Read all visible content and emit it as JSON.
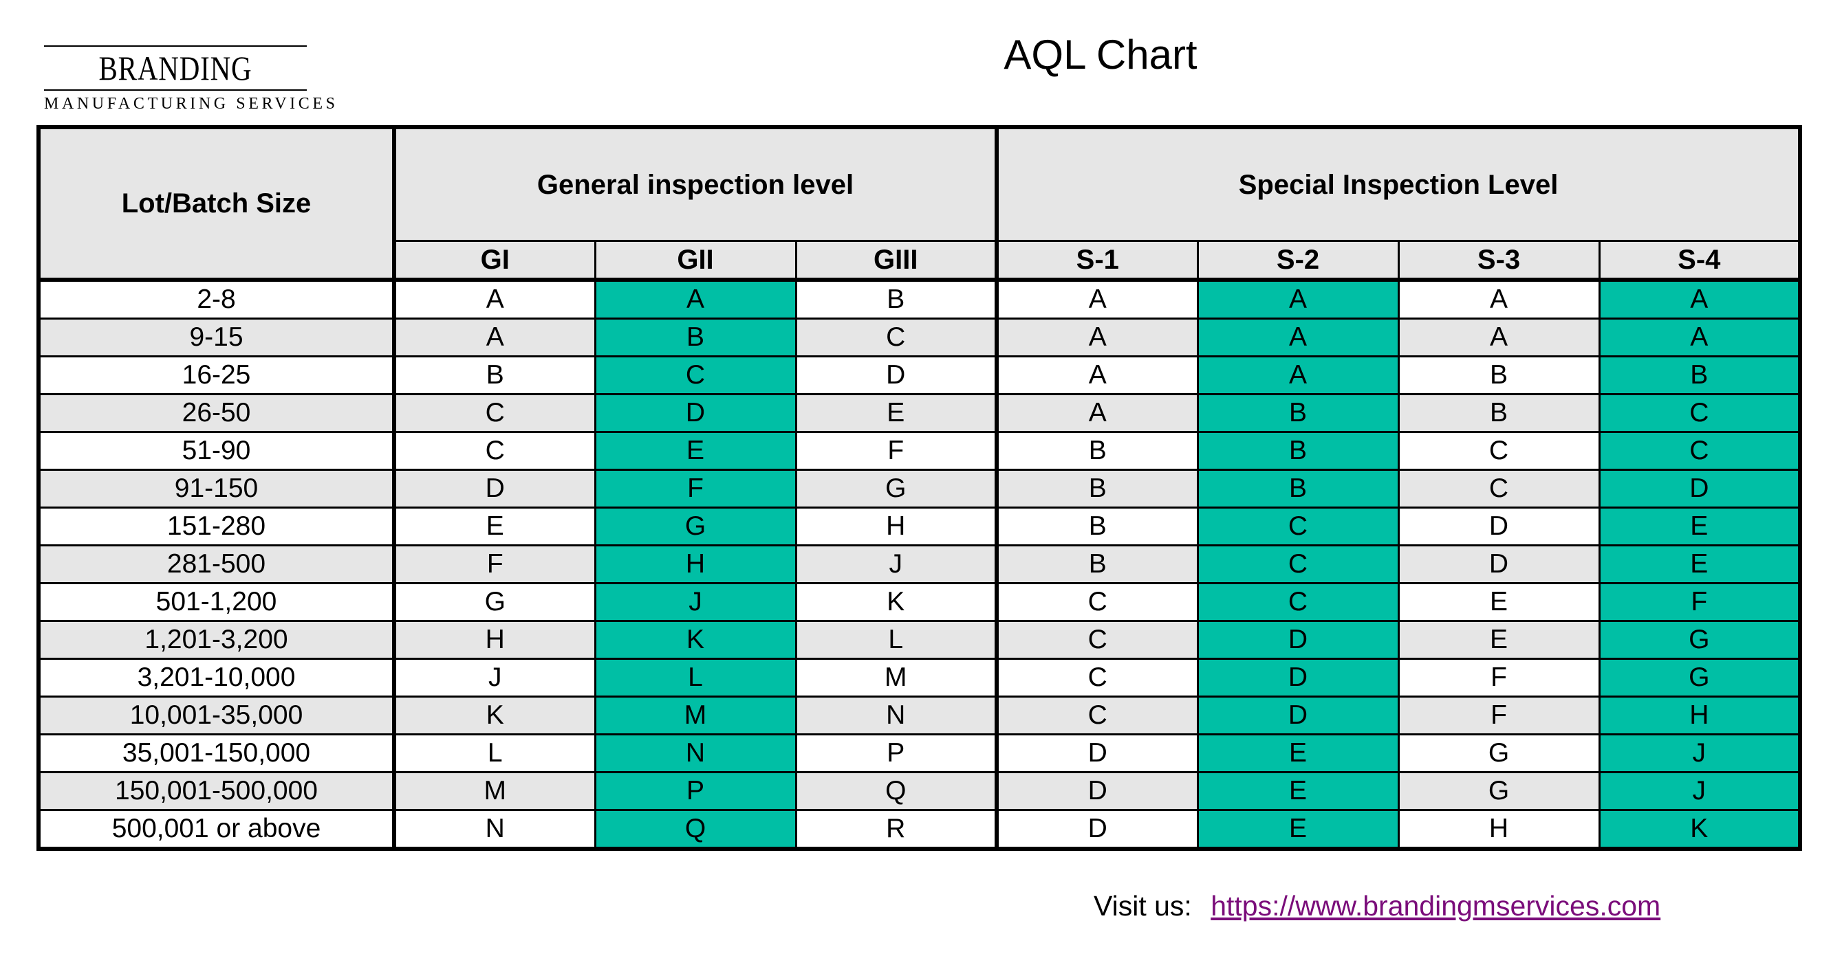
{
  "logo": {
    "brand": "BRANDING",
    "subtitle": "MANUFACTURING SERVICES"
  },
  "title": "AQL Chart",
  "table": {
    "lot_header": "Lot/Batch Size",
    "general_header": "General inspection level",
    "special_header": "Special Inspection Level",
    "columns": [
      "GI",
      "GII",
      "GIII",
      "S-1",
      "S-2",
      "S-3",
      "S-4"
    ],
    "highlight_columns": [
      "GII",
      "S-2",
      "S-4"
    ],
    "highlight_color": "#00bfa5",
    "rows": [
      {
        "lot": "2-8",
        "codes": [
          "A",
          "A",
          "B",
          "A",
          "A",
          "A",
          "A"
        ]
      },
      {
        "lot": "9-15",
        "codes": [
          "A",
          "B",
          "C",
          "A",
          "A",
          "A",
          "A"
        ]
      },
      {
        "lot": "16-25",
        "codes": [
          "B",
          "C",
          "D",
          "A",
          "A",
          "B",
          "B"
        ]
      },
      {
        "lot": "26-50",
        "codes": [
          "C",
          "D",
          "E",
          "A",
          "B",
          "B",
          "C"
        ]
      },
      {
        "lot": "51-90",
        "codes": [
          "C",
          "E",
          "F",
          "B",
          "B",
          "C",
          "C"
        ]
      },
      {
        "lot": "91-150",
        "codes": [
          "D",
          "F",
          "G",
          "B",
          "B",
          "C",
          "D"
        ]
      },
      {
        "lot": "151-280",
        "codes": [
          "E",
          "G",
          "H",
          "B",
          "C",
          "D",
          "E"
        ]
      },
      {
        "lot": "281-500",
        "codes": [
          "F",
          "H",
          "J",
          "B",
          "C",
          "D",
          "E"
        ]
      },
      {
        "lot": "501-1,200",
        "codes": [
          "G",
          "J",
          "K",
          "C",
          "C",
          "E",
          "F"
        ]
      },
      {
        "lot": "1,201-3,200",
        "codes": [
          "H",
          "K",
          "L",
          "C",
          "D",
          "E",
          "G"
        ]
      },
      {
        "lot": "3,201-10,000",
        "codes": [
          "J",
          "L",
          "M",
          "C",
          "D",
          "F",
          "G"
        ]
      },
      {
        "lot": "10,001-35,000",
        "codes": [
          "K",
          "M",
          "N",
          "C",
          "D",
          "F",
          "H"
        ]
      },
      {
        "lot": "35,001-150,000",
        "codes": [
          "L",
          "N",
          "P",
          "D",
          "E",
          "G",
          "J"
        ]
      },
      {
        "lot": "150,001-500,000",
        "codes": [
          "M",
          "P",
          "Q",
          "D",
          "E",
          "G",
          "J"
        ]
      },
      {
        "lot": "500,001 or above",
        "codes": [
          "N",
          "Q",
          "R",
          "D",
          "E",
          "H",
          "K"
        ]
      }
    ]
  },
  "footer": {
    "label": "Visit us:",
    "link_text": "https://www.brandingmservices.com"
  }
}
